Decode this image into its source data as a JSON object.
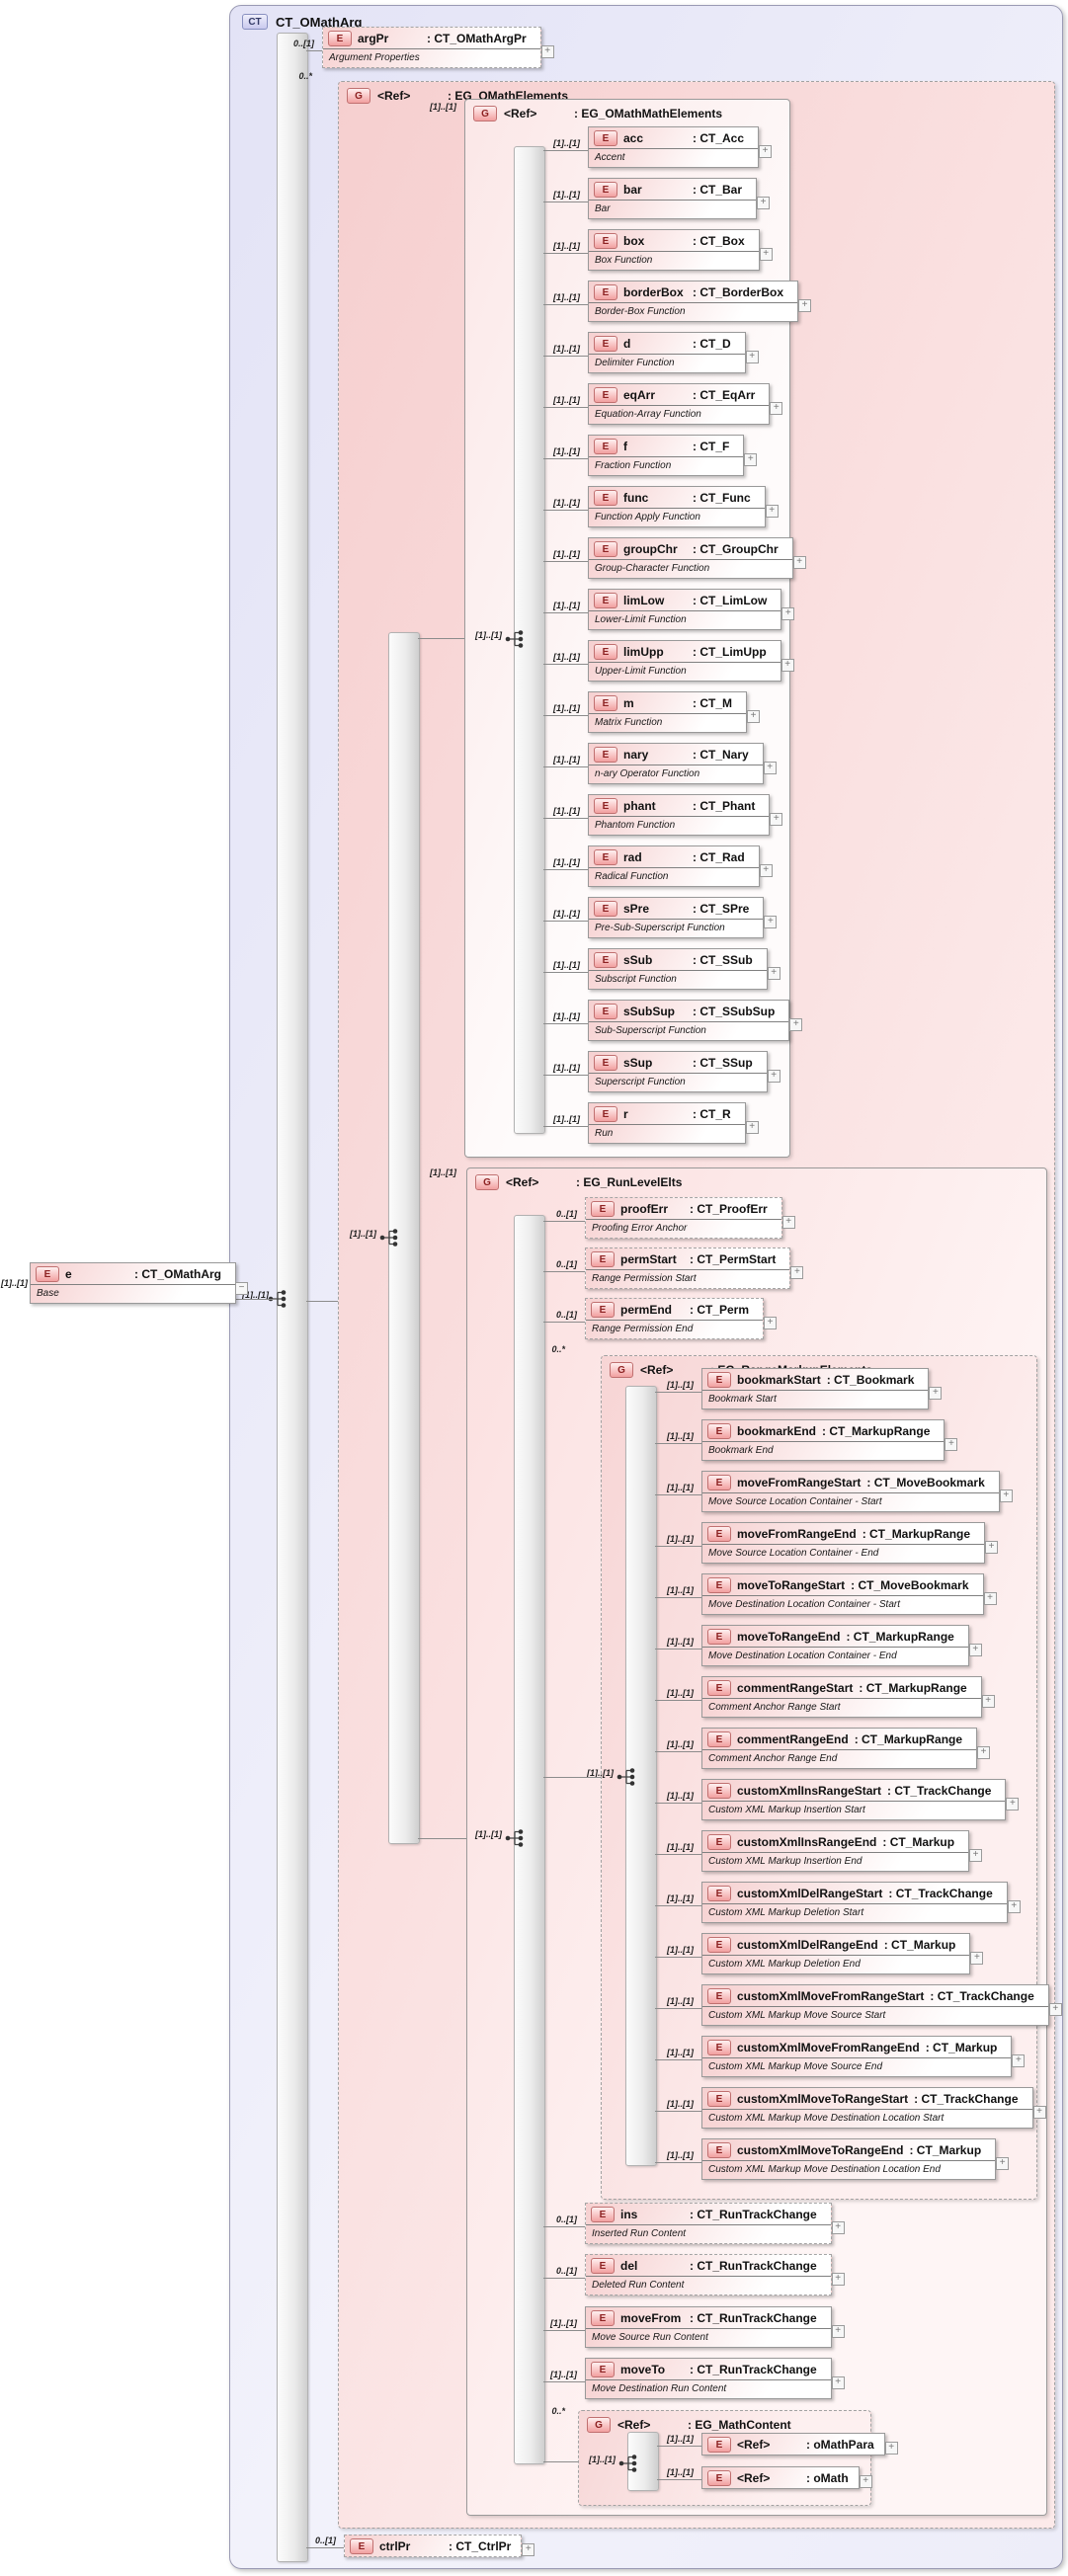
{
  "badges": {
    "complex_type": "CT",
    "element": "E",
    "group": "G"
  },
  "icons": {
    "plus": "+",
    "minus": "−"
  },
  "seq_card": "[1]..[1]",
  "complex_type": {
    "title": "CT_OMathArg"
  },
  "root_element": {
    "card": "[1]..[1]",
    "name": "e",
    "type": ": CT_OMathArg",
    "doc": "Base"
  },
  "arg_pr": {
    "card": "0..[1]",
    "name": "argPr",
    "type": ": CT_OMathArgPr",
    "doc": "Argument Properties"
  },
  "ctrl_pr": {
    "card": "0..[1]",
    "name": "ctrlPr",
    "type": ": CT_CtrlPr"
  },
  "groups": {
    "omath": {
      "card": "0..*",
      "name": "<Ref>",
      "type": ": EG_OMathElements"
    },
    "math": {
      "card": "[1]..[1]",
      "name": "<Ref>",
      "type": ": EG_OMathMathElements",
      "items": [
        {
          "card": "[1]..[1]",
          "name": "acc",
          "type": ": CT_Acc",
          "doc": "Accent"
        },
        {
          "card": "[1]..[1]",
          "name": "bar",
          "type": ": CT_Bar",
          "doc": "Bar"
        },
        {
          "card": "[1]..[1]",
          "name": "box",
          "type": ": CT_Box",
          "doc": "Box Function"
        },
        {
          "card": "[1]..[1]",
          "name": "borderBox",
          "type": ": CT_BorderBox",
          "doc": "Border-Box Function"
        },
        {
          "card": "[1]..[1]",
          "name": "d",
          "type": ": CT_D",
          "doc": "Delimiter Function"
        },
        {
          "card": "[1]..[1]",
          "name": "eqArr",
          "type": ": CT_EqArr",
          "doc": "Equation-Array Function"
        },
        {
          "card": "[1]..[1]",
          "name": "f",
          "type": ": CT_F",
          "doc": "Fraction Function"
        },
        {
          "card": "[1]..[1]",
          "name": "func",
          "type": ": CT_Func",
          "doc": "Function Apply Function"
        },
        {
          "card": "[1]..[1]",
          "name": "groupChr",
          "type": ": CT_GroupChr",
          "doc": "Group-Character Function"
        },
        {
          "card": "[1]..[1]",
          "name": "limLow",
          "type": ": CT_LimLow",
          "doc": "Lower-Limit Function"
        },
        {
          "card": "[1]..[1]",
          "name": "limUpp",
          "type": ": CT_LimUpp",
          "doc": "Upper-Limit Function"
        },
        {
          "card": "[1]..[1]",
          "name": "m",
          "type": ": CT_M",
          "doc": "Matrix Function"
        },
        {
          "card": "[1]..[1]",
          "name": "nary",
          "type": ": CT_Nary",
          "doc": "n-ary Operator Function"
        },
        {
          "card": "[1]..[1]",
          "name": "phant",
          "type": ": CT_Phant",
          "doc": "Phantom Function"
        },
        {
          "card": "[1]..[1]",
          "name": "rad",
          "type": ": CT_Rad",
          "doc": "Radical Function"
        },
        {
          "card": "[1]..[1]",
          "name": "sPre",
          "type": ": CT_SPre",
          "doc": "Pre-Sub-Superscript Function"
        },
        {
          "card": "[1]..[1]",
          "name": "sSub",
          "type": ": CT_SSub",
          "doc": "Subscript Function"
        },
        {
          "card": "[1]..[1]",
          "name": "sSubSup",
          "type": ": CT_SSubSup",
          "doc": "Sub-Superscript Function"
        },
        {
          "card": "[1]..[1]",
          "name": "sSup",
          "type": ": CT_SSup",
          "doc": "Superscript Function"
        },
        {
          "card": "[1]..[1]",
          "name": "r",
          "type": ": CT_R",
          "doc": "Run"
        }
      ]
    },
    "runlevel": {
      "card": "[1]..[1]",
      "name": "<Ref>",
      "type": ": EG_RunLevelElts",
      "pre": [
        {
          "card": "0..[1]",
          "name": "proofErr",
          "type": ": CT_ProofErr",
          "doc": "Proofing Error Anchor"
        },
        {
          "card": "0..[1]",
          "name": "permStart",
          "type": ": CT_PermStart",
          "doc": "Range Permission Start"
        },
        {
          "card": "0..[1]",
          "name": "permEnd",
          "type": ": CT_Perm",
          "doc": "Range Permission End"
        }
      ],
      "post": [
        {
          "card": "0..[1]",
          "name": "ins",
          "type": ": CT_RunTrackChange",
          "doc": "Inserted Run Content"
        },
        {
          "card": "0..[1]",
          "name": "del",
          "type": ": CT_RunTrackChange",
          "doc": "Deleted Run Content"
        },
        {
          "card": "[1]..[1]",
          "name": "moveFrom",
          "type": ": CT_RunTrackChange",
          "doc": "Move Source Run Content"
        },
        {
          "card": "[1]..[1]",
          "name": "moveTo",
          "type": ": CT_RunTrackChange",
          "doc": "Move Destination Run Content"
        }
      ]
    },
    "range": {
      "card": "0..*",
      "name": "<Ref>",
      "type": ": EG_RangeMarkupElements",
      "items": [
        {
          "card": "[1]..[1]",
          "name": "bookmarkStart",
          "type": ": CT_Bookmark",
          "doc": "Bookmark Start"
        },
        {
          "card": "[1]..[1]",
          "name": "bookmarkEnd",
          "type": ": CT_MarkupRange",
          "doc": "Bookmark End"
        },
        {
          "card": "[1]..[1]",
          "name": "moveFromRangeStart",
          "type": ": CT_MoveBookmark",
          "doc": "Move Source Location Container - Start"
        },
        {
          "card": "[1]..[1]",
          "name": "moveFromRangeEnd",
          "type": ": CT_MarkupRange",
          "doc": "Move Source Location Container - End"
        },
        {
          "card": "[1]..[1]",
          "name": "moveToRangeStart",
          "type": ": CT_MoveBookmark",
          "doc": "Move Destination Location Container - Start"
        },
        {
          "card": "[1]..[1]",
          "name": "moveToRangeEnd",
          "type": ": CT_MarkupRange",
          "doc": "Move Destination Location Container - End"
        },
        {
          "card": "[1]..[1]",
          "name": "commentRangeStart",
          "type": ": CT_MarkupRange",
          "doc": "Comment Anchor Range Start"
        },
        {
          "card": "[1]..[1]",
          "name": "commentRangeEnd",
          "type": ": CT_MarkupRange",
          "doc": "Comment Anchor Range End"
        },
        {
          "card": "[1]..[1]",
          "name": "customXmlInsRangeStart",
          "type": ": CT_TrackChange",
          "doc": "Custom XML Markup Insertion Start"
        },
        {
          "card": "[1]..[1]",
          "name": "customXmlInsRangeEnd",
          "type": ": CT_Markup",
          "doc": "Custom XML Markup Insertion End"
        },
        {
          "card": "[1]..[1]",
          "name": "customXmlDelRangeStart",
          "type": ": CT_TrackChange",
          "doc": "Custom XML Markup Deletion Start"
        },
        {
          "card": "[1]..[1]",
          "name": "customXmlDelRangeEnd",
          "type": ": CT_Markup",
          "doc": "Custom XML Markup Deletion End"
        },
        {
          "card": "[1]..[1]",
          "name": "customXmlMoveFromRangeStart",
          "type": ": CT_TrackChange",
          "doc": "Custom XML Markup Move Source Start"
        },
        {
          "card": "[1]..[1]",
          "name": "customXmlMoveFromRangeEnd",
          "type": ": CT_Markup",
          "doc": "Custom XML Markup Move Source End"
        },
        {
          "card": "[1]..[1]",
          "name": "customXmlMoveToRangeStart",
          "type": ": CT_TrackChange",
          "doc": "Custom XML Markup Move Destination Location Start"
        },
        {
          "card": "[1]..[1]",
          "name": "customXmlMoveToRangeEnd",
          "type": ": CT_Markup",
          "doc": "Custom XML Markup Move Destination Location End"
        }
      ]
    },
    "mathcontent": {
      "card": "0..*",
      "name": "<Ref>",
      "type": ": EG_MathContent",
      "items": [
        {
          "card": "[1]..[1]",
          "name": "<Ref>",
          "type": ": oMathPara"
        },
        {
          "card": "[1]..[1]",
          "name": "<Ref>",
          "type": ": oMath"
        }
      ]
    }
  }
}
